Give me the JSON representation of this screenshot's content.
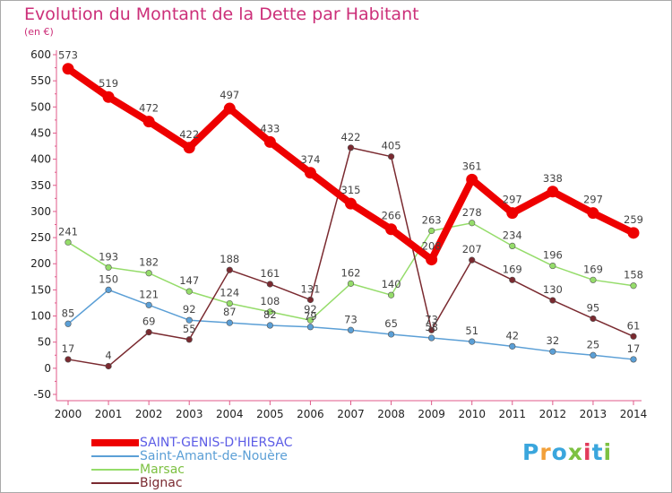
{
  "title": "Evolution du Montant de la Dette par Habitant",
  "subtitle": "(en €)",
  "logo": {
    "text": "Proxiti",
    "letter_colors": [
      "#3aa6dd",
      "#f2a03a",
      "#3aa6dd",
      "#7dc142",
      "#e23a5a",
      "#3aa6dd",
      "#7dc142"
    ]
  },
  "chart_data": {
    "type": "line",
    "title": "Evolution du Montant de la Dette par Habitant",
    "ylabel": "(en €)",
    "xlabel": "",
    "x": [
      2000,
      2001,
      2002,
      2003,
      2004,
      2005,
      2006,
      2007,
      2008,
      2009,
      2010,
      2011,
      2012,
      2013,
      2014
    ],
    "ylim": [
      -50,
      600
    ],
    "yticks": [
      -50,
      0,
      50,
      100,
      150,
      200,
      250,
      300,
      350,
      400,
      450,
      500,
      550,
      600
    ],
    "grid": false,
    "legend_position": "bottom-left",
    "series": [
      {
        "name": "SAINT-GENIS-D'HIERSAC",
        "color": "#ee0000",
        "label_color": "#5c5ce6",
        "emphasis": true,
        "values": [
          573,
          519,
          472,
          422,
          497,
          433,
          374,
          315,
          266,
          208,
          361,
          297,
          338,
          297,
          259
        ]
      },
      {
        "name": "Saint-Amant-de-Nouère",
        "color": "#5b9fd6",
        "label_color": "#5b9fd6",
        "emphasis": false,
        "values": [
          85,
          150,
          121,
          92,
          87,
          82,
          79,
          73,
          65,
          58,
          51,
          42,
          32,
          25,
          17
        ]
      },
      {
        "name": "Marsac",
        "color": "#95dc6a",
        "label_color": "#7dc142",
        "emphasis": false,
        "values": [
          241,
          193,
          182,
          147,
          124,
          108,
          92,
          162,
          140,
          263,
          278,
          234,
          196,
          169,
          158
        ]
      },
      {
        "name": "Bignac",
        "color": "#7a2a30",
        "label_color": "#7a2a30",
        "emphasis": false,
        "values": [
          17,
          4,
          69,
          55,
          188,
          161,
          131,
          422,
          405,
          73,
          207,
          169,
          130,
          95,
          61
        ]
      }
    ],
    "value_labels": [
      [
        573,
        519,
        472,
        422,
        497,
        433,
        374,
        315,
        266,
        208,
        361,
        297,
        338,
        297,
        259
      ],
      [
        85,
        150,
        121,
        92,
        87,
        82,
        79,
        73,
        65,
        58,
        51,
        42,
        32,
        25,
        17
      ],
      [
        241,
        193,
        182,
        147,
        124,
        108,
        92,
        162,
        140,
        263,
        278,
        234,
        196,
        169,
        158
      ],
      [
        17,
        4,
        69,
        55,
        188,
        161,
        131,
        422,
        405,
        73,
        207,
        169,
        130,
        95,
        61
      ]
    ]
  }
}
